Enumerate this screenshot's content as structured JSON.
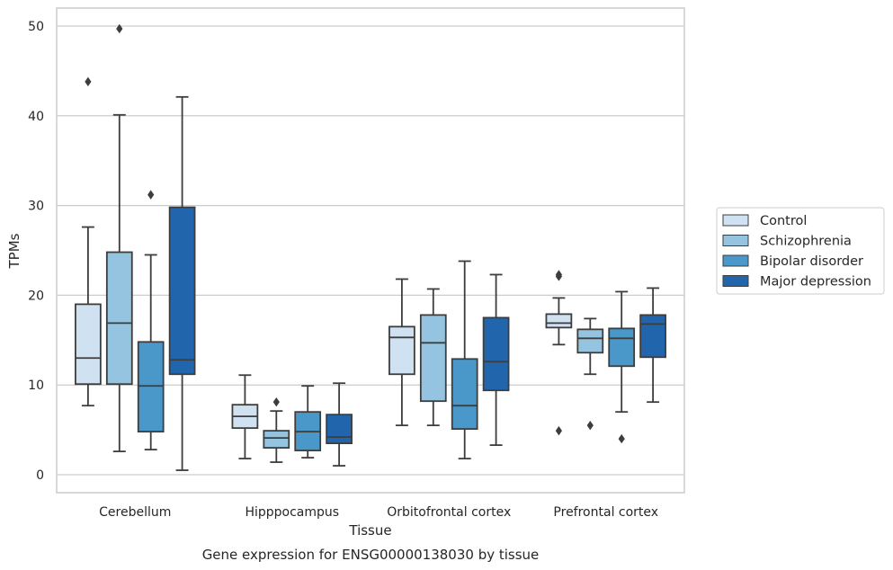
{
  "chart_data": {
    "type": "box",
    "title": "",
    "caption": "Gene expression for ENSG00000138030 by tissue",
    "xlabel": "Tissue",
    "ylabel": "TPMs",
    "ylim": [
      -2,
      52
    ],
    "yticks": [
      0,
      10,
      20,
      30,
      40,
      50
    ],
    "grid": "horizontal",
    "legend_position": "right",
    "categories": [
      "Cerebellum",
      "Hipppocampus",
      "Orbitofrontal cortex",
      "Prefrontal cortex"
    ],
    "series": [
      {
        "name": "Control",
        "color": "#d0e1f2",
        "boxes": [
          {
            "whisker_low": 7.7,
            "q1": 10.1,
            "median": 13.0,
            "q3": 19.0,
            "whisker_high": 27.6,
            "outliers": [
              43.8
            ]
          },
          {
            "whisker_low": 1.8,
            "q1": 5.2,
            "median": 6.5,
            "q3": 7.8,
            "whisker_high": 11.1,
            "outliers": []
          },
          {
            "whisker_low": 5.5,
            "q1": 11.2,
            "median": 15.3,
            "q3": 16.5,
            "whisker_high": 21.8,
            "outliers": []
          },
          {
            "whisker_low": 14.5,
            "q1": 16.4,
            "median": 16.9,
            "q3": 17.9,
            "whisker_high": 19.7,
            "outliers": [
              22.3,
              22.1,
              4.9
            ]
          }
        ]
      },
      {
        "name": "Schizophrenia",
        "color": "#94c4df",
        "boxes": [
          {
            "whisker_low": 2.6,
            "q1": 10.1,
            "median": 16.9,
            "q3": 24.8,
            "whisker_high": 40.1,
            "outliers": [
              49.7
            ]
          },
          {
            "whisker_low": 1.4,
            "q1": 3.0,
            "median": 4.1,
            "q3": 4.9,
            "whisker_high": 7.1,
            "outliers": [
              8.1
            ]
          },
          {
            "whisker_low": 5.5,
            "q1": 8.2,
            "median": 14.7,
            "q3": 17.8,
            "whisker_high": 20.7,
            "outliers": []
          },
          {
            "whisker_low": 11.2,
            "q1": 13.6,
            "median": 15.2,
            "q3": 16.2,
            "whisker_high": 17.4,
            "outliers": [
              5.5
            ]
          }
        ]
      },
      {
        "name": "Bipolar disorder",
        "color": "#4a98c9",
        "boxes": [
          {
            "whisker_low": 2.8,
            "q1": 4.8,
            "median": 9.9,
            "q3": 14.8,
            "whisker_high": 24.5,
            "outliers": [
              31.2
            ]
          },
          {
            "whisker_low": 1.9,
            "q1": 2.7,
            "median": 4.8,
            "q3": 7.0,
            "whisker_high": 9.9,
            "outliers": []
          },
          {
            "whisker_low": 1.8,
            "q1": 5.1,
            "median": 7.7,
            "q3": 12.9,
            "whisker_high": 23.8,
            "outliers": []
          },
          {
            "whisker_low": 7.0,
            "q1": 12.1,
            "median": 15.2,
            "q3": 16.3,
            "whisker_high": 20.4,
            "outliers": [
              4.0
            ]
          }
        ]
      },
      {
        "name": "Major depression",
        "color": "#2166ac",
        "boxes": [
          {
            "whisker_low": 0.5,
            "q1": 11.2,
            "median": 12.8,
            "q3": 29.8,
            "whisker_high": 42.1,
            "outliers": []
          },
          {
            "whisker_low": 1.0,
            "q1": 3.5,
            "median": 4.2,
            "q3": 6.7,
            "whisker_high": 10.2,
            "outliers": []
          },
          {
            "whisker_low": 3.3,
            "q1": 9.4,
            "median": 12.6,
            "q3": 17.5,
            "whisker_high": 22.3,
            "outliers": []
          },
          {
            "whisker_low": 8.1,
            "q1": 13.1,
            "median": 16.8,
            "q3": 17.8,
            "whisker_high": 20.8,
            "outliers": []
          }
        ]
      }
    ]
  }
}
